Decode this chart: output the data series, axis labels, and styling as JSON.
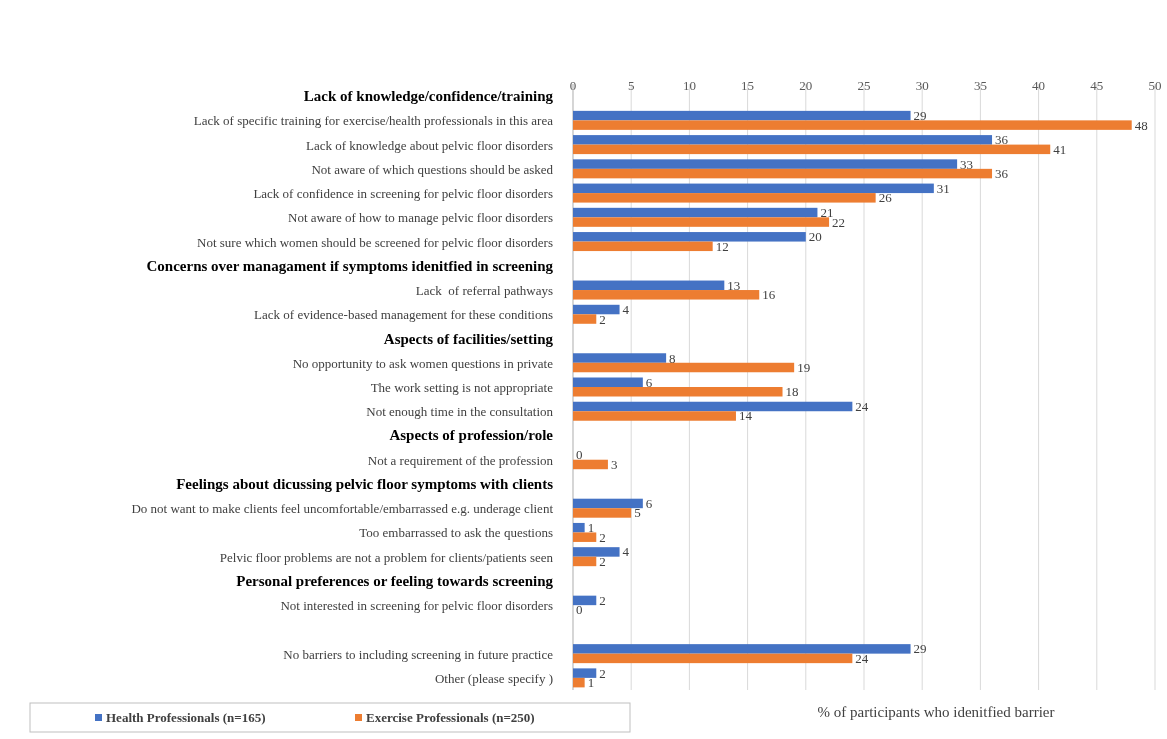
{
  "chart_data": {
    "type": "bar",
    "orientation": "horizontal",
    "xlabel": "% of participants who idenitfied barrier",
    "categories": [
      "Lack of knowledge/confidence/training",
      "Lack of specific training for exercise/health professionals in this area",
      "Lack of knowledge about pelvic floor disorders",
      "Not aware of which questions should be asked",
      "Lack of confidence in screening for pelvic floor disorders",
      "Not aware of how to manage pelvic floor disorders",
      "Not sure which women should be screened for pelvic floor disorders",
      "Concerns over managament if symptoms idenitfied in screening",
      "Lack  of referral pathways",
      "Lack of evidence-based management for these conditions",
      "Aspects of facilities/setting",
      "No opportunity to ask women questions in private",
      "The work setting is not appropriate",
      "Not enough time in the consultation",
      "Aspects of profession/role",
      "Not a requirement of the profession",
      "Feelings about dicussing pelvic floor symptoms with clients",
      "Do not want to make clients feel uncomfortable/embarrassed e.g. underage client",
      "Too embarrassed to ask the questions",
      "Pelvic floor problems are not a problem for clients/patients seen",
      "Personal preferences or feeling towards screening",
      "Not interested in screening for pelvic floor disorders",
      null,
      "No barriers to including screening in future practice",
      "Other (please specify )"
    ],
    "series": [
      {
        "name": "Health Professionals (n=165)",
        "color": "#4472c4",
        "values": [
          null,
          29,
          36,
          33,
          31,
          21,
          20,
          null,
          13,
          4,
          null,
          8,
          6,
          24,
          null,
          0,
          null,
          6,
          1,
          4,
          null,
          2,
          null,
          29,
          2
        ]
      },
      {
        "name": "Exercise Professionals (n=250)",
        "color": "#ed7d31",
        "values": [
          null,
          48,
          41,
          36,
          26,
          22,
          12,
          null,
          16,
          2,
          null,
          19,
          18,
          14,
          null,
          3,
          null,
          5,
          2,
          2,
          null,
          0,
          null,
          24,
          1
        ]
      }
    ],
    "xlim": [
      0,
      50
    ],
    "xticks": [
      0,
      5,
      10,
      15,
      20,
      25,
      30,
      35,
      40,
      45,
      50
    ],
    "grid": "x",
    "data_labels": true,
    "legend": "bottom left"
  }
}
